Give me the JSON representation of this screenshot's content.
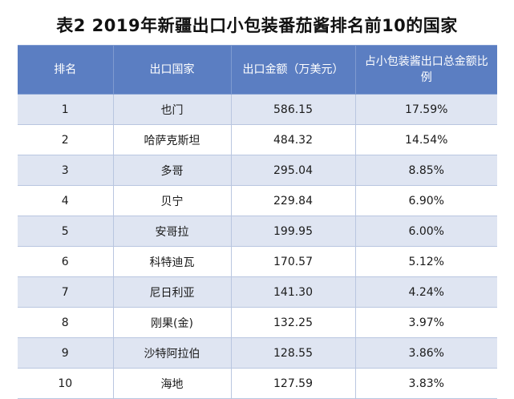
{
  "title": "表2 2019年新疆出口小包装番茄酱排名前10的国家",
  "headers": [
    "排名",
    "出口国家",
    "出口金额（万美元）",
    "占小包装酱出口总金额比例"
  ],
  "rows": [
    {
      "rank": "1",
      "country": "也门",
      "amount": "586.15",
      "share": "17.59%"
    },
    {
      "rank": "2",
      "country": "哈萨克斯坦",
      "amount": "484.32",
      "share": "14.54%"
    },
    {
      "rank": "3",
      "country": "多哥",
      "amount": "295.04",
      "share": "8.85%"
    },
    {
      "rank": "4",
      "country": "贝宁",
      "amount": "229.84",
      "share": "6.90%"
    },
    {
      "rank": "5",
      "country": "安哥拉",
      "amount": "199.95",
      "share": "6.00%"
    },
    {
      "rank": "6",
      "country": "科特迪瓦",
      "amount": "170.57",
      "share": "5.12%"
    },
    {
      "rank": "7",
      "country": "尼日利亚",
      "amount": "141.30",
      "share": "4.24%"
    },
    {
      "rank": "8",
      "country": "刚果(金)",
      "amount": "132.25",
      "share": "3.97%"
    },
    {
      "rank": "9",
      "country": "沙特阿拉伯",
      "amount": "128.55",
      "share": "3.86%"
    },
    {
      "rank": "10",
      "country": "海地",
      "amount": "127.59",
      "share": "3.83%"
    }
  ]
}
